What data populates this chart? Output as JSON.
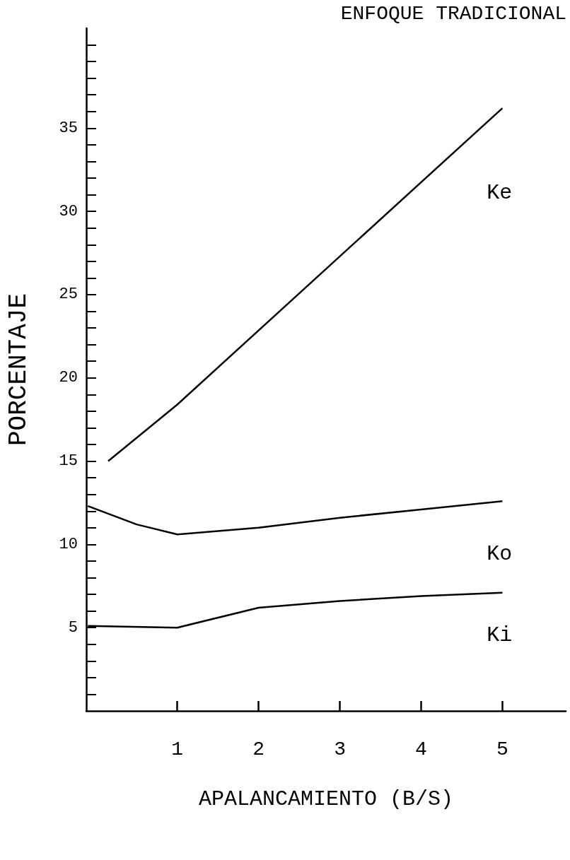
{
  "chart_data": {
    "type": "line",
    "title": "ENFOQUE TRADICIONAL",
    "xlabel": "APALANCAMIENTO (B/S)",
    "ylabel": "PORCENTAJE",
    "series": [
      {
        "name": "Ke",
        "color": "#000000",
        "x": [
          0.15,
          1,
          5
        ],
        "values": [
          15,
          18.4,
          36.2
        ]
      },
      {
        "name": "Ko",
        "color": "#000000",
        "x": [
          -0.1,
          0.5,
          1,
          2,
          3,
          4,
          5
        ],
        "values": [
          12.3,
          11.2,
          10.6,
          11.0,
          11.6,
          12.1,
          12.6
        ]
      },
      {
        "name": "Ki",
        "color": "#000000",
        "x": [
          -0.1,
          1,
          2,
          3,
          4,
          5
        ],
        "values": [
          5.1,
          5.0,
          6.2,
          6.6,
          6.9,
          7.1
        ]
      }
    ],
    "xlim": [
      -0.12,
      5.78
    ],
    "xticks": [
      1,
      2,
      3,
      4,
      5
    ],
    "ylim": [
      0,
      41
    ],
    "yticks": [
      {
        "value": 1,
        "label": null
      },
      {
        "value": 2,
        "label": null
      },
      {
        "value": 3,
        "label": null
      },
      {
        "value": 4,
        "label": null
      },
      5,
      {
        "value": 6,
        "label": null
      },
      {
        "value": 7,
        "label": null
      },
      {
        "value": 8,
        "label": null
      },
      {
        "value": 9,
        "label": null
      },
      10,
      {
        "value": 11,
        "label": null
      },
      {
        "value": 12,
        "label": null
      },
      {
        "value": 13,
        "label": null
      },
      {
        "value": 14,
        "label": null
      },
      15,
      {
        "value": 16,
        "label": null
      },
      {
        "value": 17,
        "label": null
      },
      {
        "value": 18,
        "label": null
      },
      {
        "value": 19,
        "label": null
      },
      20,
      {
        "value": 21,
        "label": null
      },
      {
        "value": 22,
        "label": null
      },
      {
        "value": 23,
        "label": null
      },
      {
        "value": 24,
        "label": null
      },
      25,
      {
        "value": 26,
        "label": null
      },
      {
        "value": 27,
        "label": null
      },
      {
        "value": 28,
        "label": null
      },
      {
        "value": 29,
        "label": null
      },
      30,
      {
        "value": 31,
        "label": null
      },
      {
        "value": 32,
        "label": null
      },
      {
        "value": 33,
        "label": null
      },
      {
        "value": 34,
        "label": null
      },
      35,
      {
        "value": 36,
        "label": null
      },
      {
        "value": 37,
        "label": null
      },
      {
        "value": 38,
        "label": null
      },
      {
        "value": 39,
        "label": null
      },
      {
        "value": 40,
        "label": null
      }
    ],
    "grid": false,
    "legend": false,
    "marker": "none",
    "line_style": "solid"
  }
}
